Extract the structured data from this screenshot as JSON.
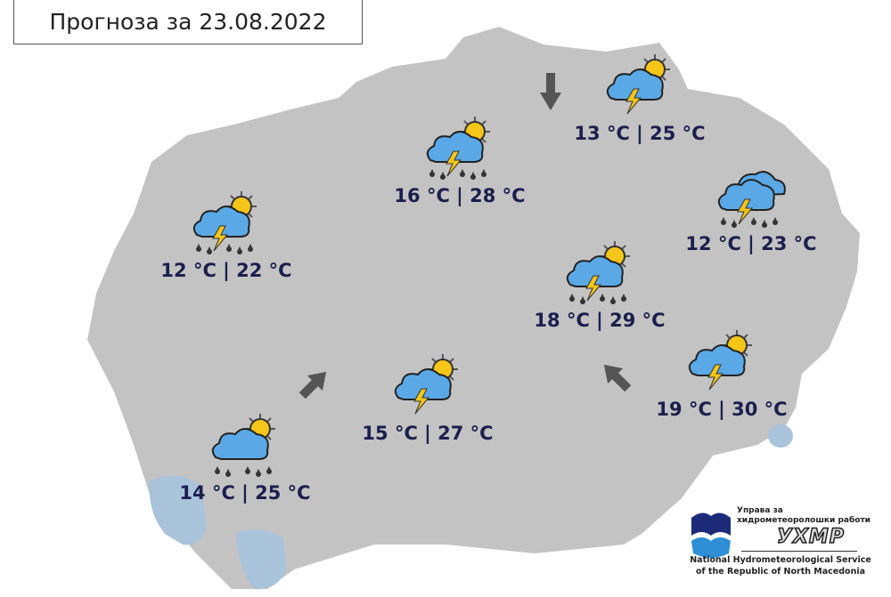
{
  "title": "Прогноза за 23.08.2022",
  "colors": {
    "land": "#c3c3c3",
    "lake": "#a9c3da",
    "temp_text": "#1b1f4d",
    "cloud": "#5aa9e6",
    "sun": "#f5c518",
    "bolt": "#f5c518"
  },
  "locations": [
    {
      "icon": "sun-cloud-storm-rain-icon",
      "temp": "16 °C | 28 °C"
    },
    {
      "icon": "sun-cloud-storm-icon",
      "temp": "13 °C | 25 °C"
    },
    {
      "icon": "sun-cloud-storm-rain-icon",
      "temp": "12 °C | 22 °C"
    },
    {
      "icon": "cloud-storm-rain-icon",
      "temp": "12 °C | 23 °C"
    },
    {
      "icon": "sun-cloud-storm-rain-icon",
      "temp": "18 °C | 29 °C"
    },
    {
      "icon": "sun-cloud-storm-icon",
      "temp": "19 °C | 30 °C"
    },
    {
      "icon": "sun-cloud-storm-icon",
      "temp": "15 °C | 27 °C"
    },
    {
      "icon": "sun-cloud-rain-icon",
      "temp": "14 °C | 25 °C"
    }
  ],
  "wind_arrows": [
    {
      "direction": "south"
    },
    {
      "direction": "southwest"
    },
    {
      "direction": "northwest"
    }
  ],
  "logo": {
    "line1": "Управа за хидрометеоролошки работи",
    "abbr": "УХМР",
    "line2": "National Hydrometeorological Service",
    "line3": "of the Republic of North Macedonia"
  }
}
